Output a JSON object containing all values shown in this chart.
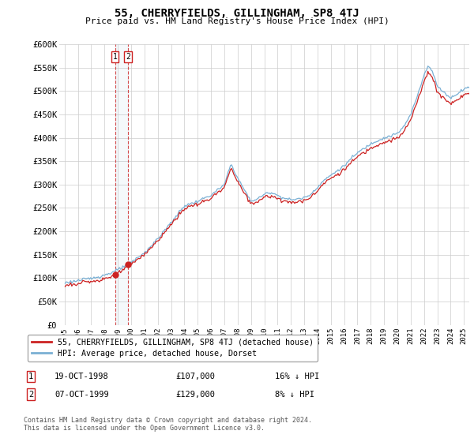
{
  "title": "55, CHERRYFIELDS, GILLINGHAM, SP8 4TJ",
  "subtitle": "Price paid vs. HM Land Registry's House Price Index (HPI)",
  "transaction1_date": "19-OCT-1998",
  "transaction1_price": "£107,000",
  "transaction1_hpi": "16% ↓ HPI",
  "transaction2_date": "07-OCT-1999",
  "transaction2_price": "£129,000",
  "transaction2_hpi": "8% ↓ HPI",
  "t1_x": 1998.79,
  "t1_y": 107000,
  "t2_x": 1999.77,
  "t2_y": 129000,
  "ylim": [
    0,
    600000
  ],
  "xlim_left": 1994.6,
  "xlim_right": 2025.4,
  "yticks": [
    0,
    50000,
    100000,
    150000,
    200000,
    250000,
    300000,
    350000,
    400000,
    450000,
    500000,
    550000,
    600000
  ],
  "legend_property": "55, CHERRYFIELDS, GILLINGHAM, SP8 4TJ (detached house)",
  "legend_hpi": "HPI: Average price, detached house, Dorset",
  "footer": "Contains HM Land Registry data © Crown copyright and database right 2024.\nThis data is licensed under the Open Government Licence v3.0.",
  "hpi_color": "#7ab0d4",
  "property_color": "#cc2222",
  "vline_color": "#cc2222",
  "background_color": "#ffffff",
  "grid_color": "#cccccc"
}
